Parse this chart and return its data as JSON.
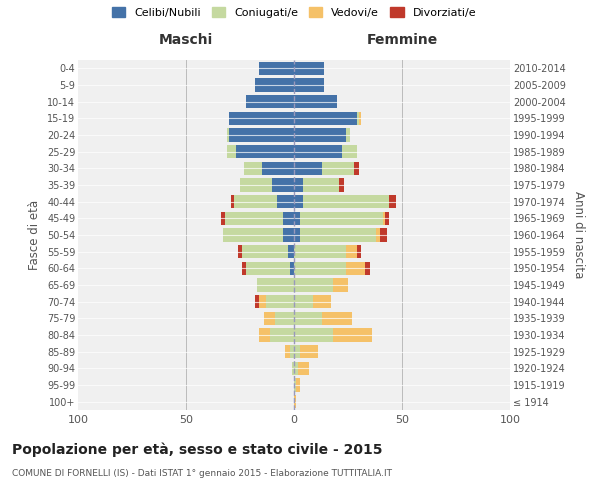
{
  "age_groups": [
    "100+",
    "95-99",
    "90-94",
    "85-89",
    "80-84",
    "75-79",
    "70-74",
    "65-69",
    "60-64",
    "55-59",
    "50-54",
    "45-49",
    "40-44",
    "35-39",
    "30-34",
    "25-29",
    "20-24",
    "15-19",
    "10-14",
    "5-9",
    "0-4"
  ],
  "birth_years": [
    "≤ 1914",
    "1915-1919",
    "1920-1924",
    "1925-1929",
    "1930-1934",
    "1935-1939",
    "1940-1944",
    "1945-1949",
    "1950-1954",
    "1955-1959",
    "1960-1964",
    "1965-1969",
    "1970-1974",
    "1975-1979",
    "1980-1984",
    "1985-1989",
    "1990-1994",
    "1995-1999",
    "2000-2004",
    "2005-2009",
    "2010-2014"
  ],
  "colors": {
    "celibi": "#4472a8",
    "coniugati": "#c5d9a0",
    "vedovi": "#f5c168",
    "divorziati": "#c0392b"
  },
  "maschi": {
    "celibi": [
      0,
      0,
      0,
      0,
      0,
      0,
      0,
      0,
      2,
      3,
      5,
      5,
      8,
      10,
      15,
      27,
      30,
      30,
      22,
      18,
      16
    ],
    "coniugati": [
      0,
      0,
      1,
      2,
      11,
      9,
      13,
      17,
      20,
      21,
      28,
      27,
      20,
      15,
      8,
      4,
      1,
      0,
      0,
      0,
      0
    ],
    "vedovi": [
      0,
      0,
      0,
      2,
      5,
      5,
      3,
      0,
      0,
      0,
      0,
      0,
      0,
      0,
      0,
      0,
      0,
      0,
      0,
      0,
      0
    ],
    "divorziati": [
      0,
      0,
      0,
      0,
      0,
      0,
      2,
      0,
      2,
      2,
      0,
      2,
      1,
      0,
      0,
      0,
      0,
      0,
      0,
      0,
      0
    ]
  },
  "femmine": {
    "nubili": [
      0,
      0,
      0,
      0,
      0,
      0,
      0,
      0,
      0,
      0,
      3,
      3,
      4,
      4,
      13,
      22,
      24,
      29,
      20,
      14,
      14
    ],
    "coniugati": [
      0,
      1,
      2,
      3,
      18,
      13,
      9,
      18,
      24,
      24,
      35,
      38,
      40,
      17,
      15,
      7,
      2,
      1,
      0,
      0,
      0
    ],
    "vedovi": [
      1,
      2,
      5,
      8,
      18,
      14,
      8,
      7,
      9,
      5,
      2,
      1,
      0,
      0,
      0,
      0,
      0,
      1,
      0,
      0,
      0
    ],
    "divorziati": [
      0,
      0,
      0,
      0,
      0,
      0,
      0,
      0,
      2,
      2,
      3,
      2,
      3,
      2,
      2,
      0,
      0,
      0,
      0,
      0,
      0
    ]
  },
  "xlim": 100,
  "title": "Popolazione per età, sesso e stato civile - 2015",
  "subtitle": "COMUNE DI FORNELLI (IS) - Dati ISTAT 1° gennaio 2015 - Elaborazione TUTTITALIA.IT",
  "ylabel_left": "Fasce di età",
  "ylabel_right": "Anni di nascita",
  "maschi_label": "Maschi",
  "femmine_label": "Femmine",
  "legend_labels": [
    "Celibi/Nubili",
    "Coniugati/e",
    "Vedovi/e",
    "Divorziati/e"
  ],
  "background_color": "#ffffff",
  "bar_height": 0.8
}
